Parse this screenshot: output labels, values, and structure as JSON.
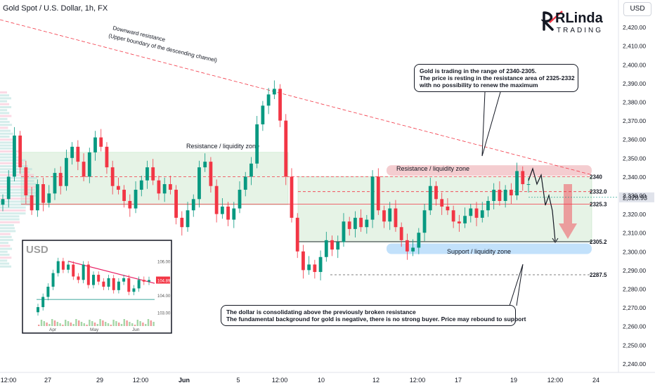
{
  "title": "Gold Spot / U.S. Dollar, 1h, FX",
  "currency_button": "USD",
  "brand": {
    "big": "RLinda",
    "small": "TRADING",
    "color": "#131722"
  },
  "colors": {
    "up": "#089981",
    "down": "#f23645",
    "resistance_line": "#f23645",
    "zone_green": "#c8e6c9",
    "zone_red": "#f2c4c8",
    "zone_blue": "#bbdefb",
    "current": "#089981"
  },
  "annotations": {
    "trendline_label_1": "Downward resistance",
    "trendline_label_2": "(Upper boundary of the descending channel)",
    "zone_left": "Resistance / liquidity zone",
    "zone_right_top": "Resistance / liquidity zone",
    "zone_right_bottom": "Support / liquidity zone",
    "note_gold": [
      "Gold is trading in the range of 2340-2305.",
      "The price is resting in the resistance area of 2325-2332",
      "with no possibility to renew the maximum"
    ],
    "note_dollar": [
      "The dollar is consolidating above the previously broken resistance",
      "The fundamental background for gold is negative, there is no strong buyer. Price may rebound to support"
    ]
  },
  "chart_data": [
    {
      "type": "candlestick",
      "title": "Gold Spot / U.S. Dollar, 1h, FX",
      "y_axis": {
        "ticks": [
          "2,420.00",
          "2,410.00",
          "2,400.00",
          "2,390.00",
          "2,380.00",
          "2,370.00",
          "2,360.00",
          "2,350.00",
          "2,340.00",
          "2,330.00",
          "2,320.00",
          "2,310.00",
          "2,300.00",
          "2,290.00",
          "2,280.00",
          "2,270.00",
          "2,260.00",
          "2,250.00",
          "2,240.00"
        ],
        "range": [
          2236,
          2424
        ]
      },
      "x_axis": {
        "ticks": [
          "12:00",
          "27",
          "29",
          "12:00",
          "Jun",
          "5",
          "12:00",
          "10",
          "12",
          "12:00",
          "17",
          "19",
          "12:00",
          "24"
        ]
      },
      "levels": [
        {
          "label": "2340",
          "value": 2340.0
        },
        {
          "label": "2332.0",
          "value": 2332.0
        },
        {
          "label": "2325.3",
          "value": 2325.3
        },
        {
          "label": "2305.2",
          "value": 2305.2
        },
        {
          "label": "2287.5",
          "value": 2287.5
        }
      ],
      "current_price": {
        "label": "2,328.93",
        "value": 2328.93
      },
      "zones": [
        {
          "name": "Resistance / liquidity zone (left)",
          "y_range": [
            2325,
            2353
          ]
        },
        {
          "name": "Range (right)",
          "y_range": [
            2305,
            2340
          ]
        },
        {
          "name": "Resistance / liquidity zone (right)",
          "y_range": [
            2340,
            2345
          ]
        },
        {
          "name": "Support / liquidity zone",
          "y_range": [
            2300,
            2305
          ]
        }
      ],
      "trendline": {
        "from_value": 2424,
        "to_value": 2341
      },
      "close_path": [
        2328,
        2340,
        2362,
        2345,
        2330,
        2322,
        2336,
        2326,
        2331,
        2342,
        2335,
        2350,
        2356,
        2348,
        2340,
        2353,
        2361,
        2356,
        2345,
        2335,
        2333,
        2327,
        2323,
        2333,
        2338,
        2345,
        2338,
        2331,
        2336,
        2333,
        2318,
        2313,
        2322,
        2328,
        2345,
        2348,
        2335,
        2320,
        2324,
        2317,
        2323,
        2333,
        2340,
        2347,
        2368,
        2378,
        2384,
        2387,
        2370,
        2340,
        2318,
        2300,
        2290,
        2293,
        2289,
        2297,
        2306,
        2301,
        2305,
        2316,
        2312,
        2318,
        2313,
        2317,
        2340,
        2322,
        2316,
        2323,
        2313,
        2306,
        2300,
        2302,
        2310,
        2322,
        2335,
        2328,
        2324,
        2322,
        2316,
        2315,
        2319,
        2323,
        2318,
        2322,
        2327,
        2333,
        2327,
        2333,
        2330,
        2343,
        2336,
        2336
      ]
    },
    {
      "type": "line",
      "title": "USD",
      "inset": true,
      "x_axis": {
        "ticks": [
          "Apr",
          "May",
          "Jun"
        ]
      },
      "y_axis": {
        "ticks": [
          "106.00",
          "104.00",
          "103.00"
        ],
        "range": [
          102.6,
          106.4
        ]
      },
      "current_price": {
        "label": "104.89",
        "value": 104.89
      },
      "close_path": [
        103.3,
        103.9,
        104.5,
        105.3,
        106.0,
        105.5,
        105.8,
        105.1,
        104.9,
        105.8,
        104.6,
        105.2,
        104.8,
        104.5,
        105.0,
        104.3,
        104.8,
        105.0,
        104.2,
        104.4,
        104.9,
        104.8,
        104.89
      ]
    }
  ]
}
